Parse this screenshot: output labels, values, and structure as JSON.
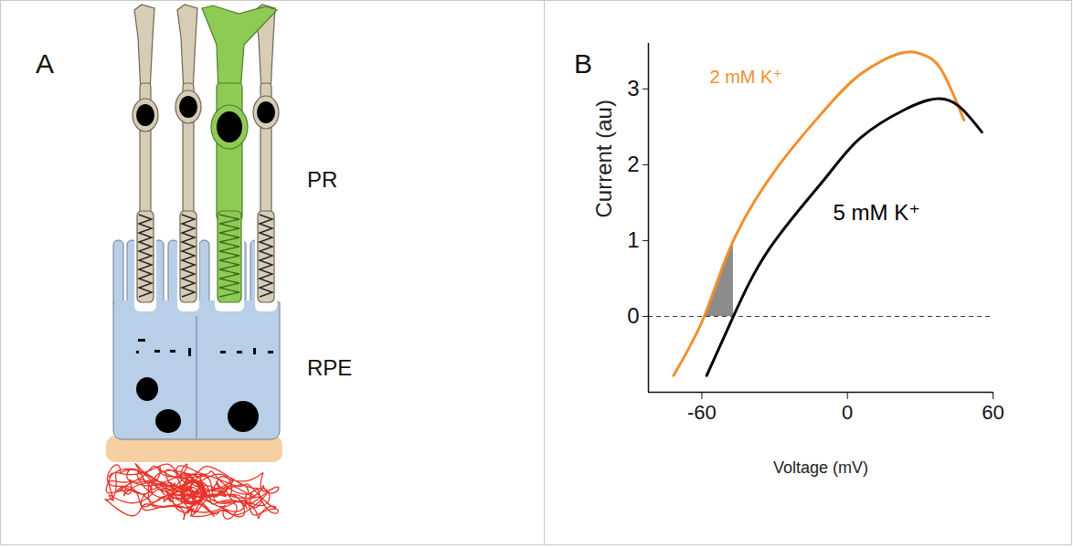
{
  "diagram": {
    "letter": "A",
    "labels": {
      "photoreceptors": "PR",
      "epithelium": "RPE"
    }
  },
  "chart_data": {
    "letter": "B",
    "type": "line",
    "x_label": "Voltage (mV)",
    "y_label": "Current (au)",
    "xlim": [
      -82,
      60
    ],
    "ylim": [
      -1,
      3.6
    ],
    "xticks": [
      -60,
      0,
      60
    ],
    "yticks": [
      0,
      1,
      2,
      3
    ],
    "grid": false,
    "legend": false,
    "reference_lines": [
      {
        "y": 0,
        "line_style": "dashed"
      }
    ],
    "series": [
      {
        "name": "2 mM K⁺",
        "color": "#f0902a",
        "x": [
          -71.7,
          -59,
          -47,
          -28.3,
          -9.7,
          5.2,
          21.9,
          31.2,
          38.7,
          48
        ],
        "values": [
          -0.78,
          0,
          1.0,
          1.99,
          2.71,
          3.19,
          3.47,
          3.45,
          3.25,
          2.59
        ]
      },
      {
        "name": "5 mM K⁺",
        "color": "#000000",
        "x": [
          -58,
          -47,
          -32,
          -9.7,
          5.2,
          23.8,
          36.8,
          46,
          55.4
        ],
        "values": [
          -0.78,
          0,
          0.9,
          1.8,
          2.35,
          2.73,
          2.87,
          2.77,
          2.43
        ]
      }
    ],
    "shaded": {
      "series": "2 mM K⁺",
      "x_from": -59,
      "x_to": -47,
      "y_from": 0,
      "color": "#8c8c8c"
    }
  }
}
